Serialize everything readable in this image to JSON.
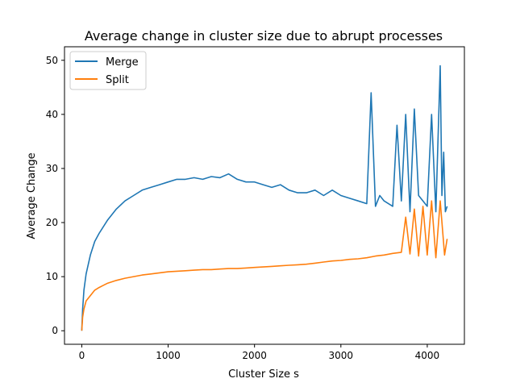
{
  "chart_data": {
    "type": "line",
    "title": "Average change in cluster size due to abrupt processes",
    "xlabel": "Cluster Size s",
    "ylabel": "Average Change",
    "xlim": [
      -200,
      4430
    ],
    "ylim": [
      -2.5,
      52.5
    ],
    "x_ticks": [
      0,
      1000,
      2000,
      3000,
      4000
    ],
    "y_ticks": [
      0,
      10,
      20,
      30,
      40,
      50
    ],
    "grid": false,
    "legend": "top-left",
    "series": [
      {
        "name": "Merge",
        "color": "#1f77b4",
        "x": [
          0,
          10,
          25,
          50,
          100,
          150,
          200,
          300,
          400,
          500,
          600,
          700,
          800,
          900,
          1000,
          1100,
          1200,
          1300,
          1400,
          1500,
          1600,
          1700,
          1800,
          1900,
          2000,
          2100,
          2200,
          2300,
          2400,
          2500,
          2600,
          2700,
          2800,
          2900,
          3000,
          3100,
          3200,
          3300,
          3350,
          3400,
          3450,
          3500,
          3600,
          3650,
          3700,
          3750,
          3800,
          3850,
          3900,
          3950,
          4000,
          4050,
          4100,
          4150,
          4170,
          4190,
          4210,
          4230
        ],
        "y": [
          0,
          4,
          7.5,
          10.5,
          14,
          16.5,
          18,
          20.5,
          22.5,
          24,
          25,
          26,
          26.5,
          27,
          27.5,
          28,
          28,
          28.3,
          28,
          28.5,
          28.3,
          29,
          28,
          27.5,
          27.5,
          27,
          26.5,
          27,
          26,
          25.5,
          25.5,
          26,
          25,
          26,
          25,
          24.5,
          24,
          23.5,
          44,
          23,
          25,
          24,
          23,
          38,
          24,
          40,
          22,
          41,
          25,
          24,
          23,
          40,
          22,
          49,
          25,
          33,
          22,
          23
        ]
      },
      {
        "name": "Split",
        "color": "#ff7f0e",
        "x": [
          0,
          10,
          25,
          50,
          100,
          150,
          200,
          300,
          400,
          500,
          600,
          700,
          800,
          900,
          1000,
          1100,
          1200,
          1300,
          1400,
          1500,
          1600,
          1700,
          1800,
          1900,
          2000,
          2100,
          2200,
          2300,
          2400,
          2500,
          2600,
          2700,
          2800,
          2900,
          3000,
          3100,
          3200,
          3300,
          3400,
          3500,
          3600,
          3700,
          3750,
          3800,
          3850,
          3900,
          3950,
          4000,
          4050,
          4100,
          4150,
          4200,
          4230
        ],
        "y": [
          0,
          2.5,
          4,
          5.5,
          6.5,
          7.5,
          8,
          8.8,
          9.3,
          9.7,
          10,
          10.3,
          10.5,
          10.7,
          10.9,
          11,
          11.1,
          11.2,
          11.3,
          11.3,
          11.4,
          11.5,
          11.5,
          11.6,
          11.7,
          11.8,
          11.9,
          12,
          12.1,
          12.2,
          12.3,
          12.5,
          12.7,
          12.9,
          13,
          13.2,
          13.3,
          13.5,
          13.8,
          14,
          14.3,
          14.5,
          21,
          14.2,
          22.5,
          13.8,
          23,
          14,
          24,
          13.5,
          24,
          14,
          17
        ]
      }
    ]
  }
}
